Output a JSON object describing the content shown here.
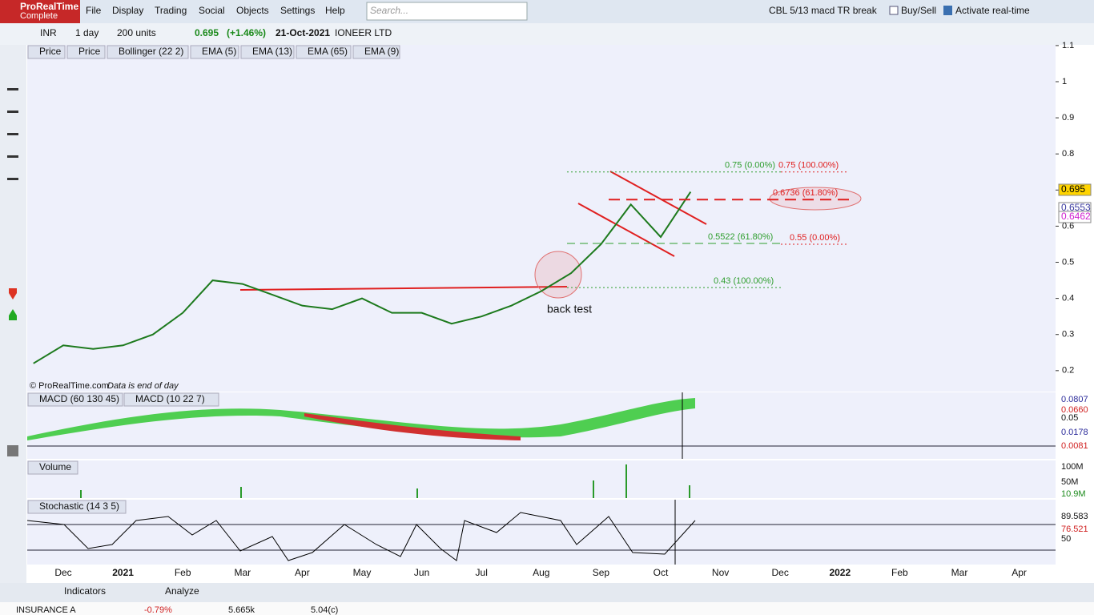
{
  "app": {
    "brand": "ProRealTime",
    "edition": "Complete",
    "menu": [
      "File",
      "Display",
      "Trading",
      "Social",
      "Objects",
      "Settings",
      "Help"
    ],
    "search_placeholder": "Search...",
    "workspace": "CBL 5/13 macd TR break",
    "buy_sell": "Buy/Sell",
    "activate": "Activate real-time"
  },
  "toolbar": {
    "ticker": "INR",
    "period": "1 day",
    "units": "200 units",
    "last": "0.695",
    "change": "(+1.46%)",
    "date": "21-Oct-2021",
    "name": "IONEER LTD"
  },
  "price_legend": [
    "Price",
    "Bollinger (22 2)",
    "EMA (5)",
    "EMA (13)",
    "EMA (65)",
    "EMA (9)"
  ],
  "chart_data": {
    "type": "line",
    "categories": [
      null,
      "Dec",
      null,
      "2021",
      null,
      "Feb",
      null,
      "Mar",
      null,
      "Apr",
      null,
      "May",
      null,
      "Jun",
      null,
      "Jul",
      null,
      "Aug",
      null,
      "Sep",
      null,
      "Oct",
      null,
      "Nov",
      null,
      "Dec",
      null,
      "2022",
      null,
      "Feb",
      null,
      "Mar",
      null,
      "Apr",
      null
    ],
    "series": [
      {
        "name": "Price",
        "color": "#1d7a1d",
        "values": [
          0.22,
          0.27,
          0.26,
          0.27,
          0.3,
          0.36,
          0.45,
          0.44,
          0.41,
          0.38,
          0.37,
          0.4,
          0.36,
          0.36,
          0.33,
          0.35,
          0.38,
          0.42,
          0.47,
          0.55,
          0.66,
          0.57,
          0.695,
          null,
          null,
          null,
          null,
          null,
          null,
          null,
          null,
          null,
          null,
          null,
          null
        ]
      }
    ],
    "ylim": [
      0.142,
      1.102
    ],
    "yticks": [
      0.2,
      0.3,
      0.4,
      0.5,
      0.6,
      0.7,
      0.8,
      0.9,
      1,
      1.1
    ],
    "fib_levels": [
      {
        "value": 0.75,
        "label": "0.75 (0.00%)",
        "color": "#2e9e2e"
      },
      {
        "value": 0.75,
        "label": "0.75 (100.00%)",
        "color": "#e02020"
      },
      {
        "value": 0.6736,
        "label": "0.6736 (61.80%)",
        "color": "#e02020"
      },
      {
        "value": 0.5522,
        "label": "0.5522 (61.80%)",
        "color": "#2e9e2e"
      },
      {
        "value": 0.55,
        "label": "0.55 (0.00%)",
        "color": "#e02020"
      },
      {
        "value": 0.43,
        "label": "0.43 (100.00%)",
        "color": "#2e9e2e"
      }
    ],
    "annotation": "back test",
    "copyright": "© ProRealTime.com",
    "data_note": "Data is end of day",
    "price_labels": [
      "0.695",
      "0.6553",
      "0.6462"
    ]
  },
  "macd": {
    "legend": [
      "MACD (60 130 45)",
      "MACD (10 22 7)"
    ],
    "labels": [
      "0.0807",
      "0.0660",
      "0.05",
      "0.0178",
      "0.0081"
    ]
  },
  "volume": {
    "legend": "Volume",
    "labels": [
      "100M",
      "50M",
      "10.9M"
    ]
  },
  "stochastic": {
    "legend": "Stochastic (14 3 5)",
    "labels": [
      "89.583",
      "76.521",
      "50"
    ]
  },
  "bottom": {
    "indicators": "Indicators",
    "analyze": "Analyze",
    "row": [
      "INSURANCE A",
      "-0.79%",
      "5.665k",
      "5.04(c)"
    ]
  }
}
